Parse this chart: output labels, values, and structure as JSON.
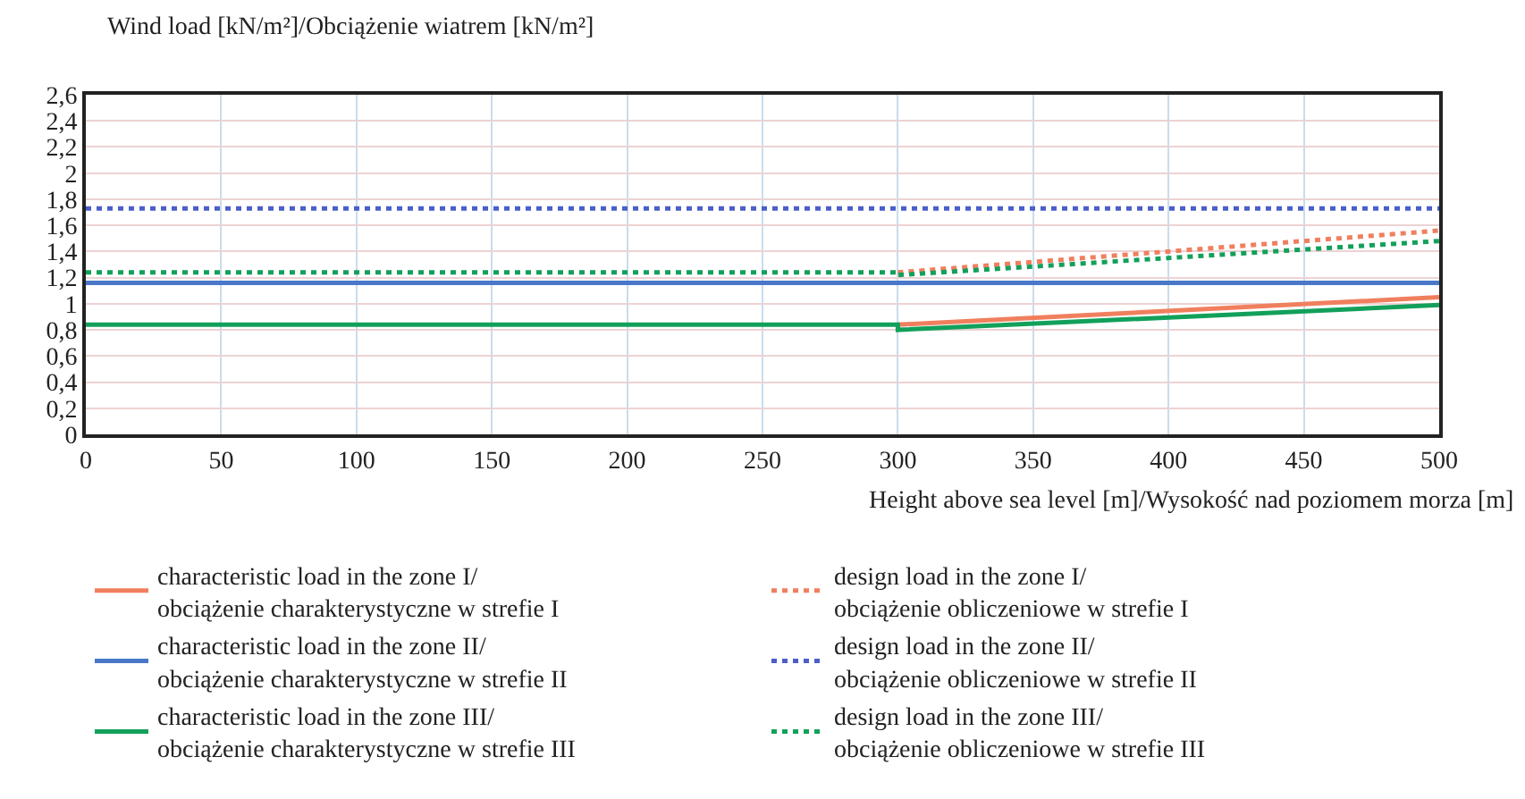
{
  "chart_data": {
    "type": "line",
    "xlabel": "Height above sea level [m]/Wysokość nad poziomem morza [m]",
    "ylabel": "Wind load [kN/m²]/Obciążenie wiatrem [kN/m²]",
    "xlim": [
      0,
      500
    ],
    "xticks": [
      0,
      50,
      100,
      150,
      200,
      250,
      300,
      350,
      400,
      450,
      500
    ],
    "ylim": [
      0,
      2.6
    ],
    "yticks": [
      {
        "value": 0,
        "label": "0"
      },
      {
        "value": 0.2,
        "label": "0,2"
      },
      {
        "value": 0.4,
        "label": "0,4"
      },
      {
        "value": 0.6,
        "label": "0,6"
      },
      {
        "value": 0.8,
        "label": "0,8"
      },
      {
        "value": 1,
        "label": "1"
      },
      {
        "value": 1.2,
        "label": "1,2"
      },
      {
        "value": 1.4,
        "label": "1,4"
      },
      {
        "value": 1.6,
        "label": "1,6"
      },
      {
        "value": 1.8,
        "label": "1,8"
      },
      {
        "value": 2,
        "label": "2"
      },
      {
        "value": 2.2,
        "label": "2,2"
      },
      {
        "value": 2.4,
        "label": "2,4"
      },
      {
        "value": 2.6,
        "label": "2,6"
      }
    ],
    "grid": true,
    "legend": "bottom",
    "marker": "none",
    "series": [
      {
        "name": "characteristic load in the zone I/\nobciążenie charakterystyczne w strefie I",
        "color": "#f07f5e",
        "line_style": "solid",
        "x": [
          300,
          500
        ],
        "values": [
          0.84,
          1.05
        ]
      },
      {
        "name": "characteristic load in the zone II/\nobciążenie charakterystyczne w strefie II",
        "color": "#4a78c8",
        "line_style": "solid",
        "x": [
          0,
          500
        ],
        "values": [
          1.16,
          1.16
        ]
      },
      {
        "name": "characteristic load in the zone III/\nobciążenie charakterystyczne w strefie III",
        "color": "#12a05a",
        "line_style": "solid",
        "x": [
          0,
          300,
          300,
          500
        ],
        "values": [
          0.84,
          0.84,
          0.8,
          0.99
        ]
      },
      {
        "name": "design load in the zone I/\nobciążenie obliczeniowe w strefie I",
        "color": "#f07f5e",
        "line_style": "dotted",
        "x": [
          300,
          500
        ],
        "values": [
          1.24,
          1.56
        ]
      },
      {
        "name": "design load in the zone II/\nobciążenie obliczeniowe w strefie II",
        "color": "#4a5fc8",
        "line_style": "dotted",
        "x": [
          0,
          500
        ],
        "values": [
          1.73,
          1.73
        ]
      },
      {
        "name": "design load in the zone III/\nobciążenie obliczeniowe w strefie III",
        "color": "#12a05a",
        "line_style": "dotted",
        "x": [
          0,
          300,
          300,
          500
        ],
        "values": [
          1.24,
          1.24,
          1.22,
          1.48
        ]
      }
    ]
  }
}
